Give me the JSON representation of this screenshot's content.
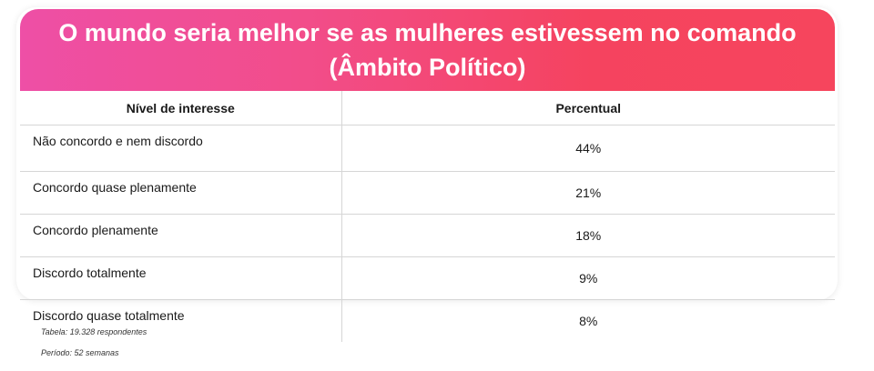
{
  "title": "O mundo seria melhor se as mulheres estivessem no comando (Âmbito Político)",
  "columns": [
    "Nível de interesse",
    "Percentual"
  ],
  "rows": [
    {
      "label": "Não concordo e nem discordo",
      "value": "44%"
    },
    {
      "label": "Concordo quase plenamente",
      "value": "21%"
    },
    {
      "label": "Concordo plenamente",
      "value": "18%"
    },
    {
      "label": "Discordo totalmente",
      "value": "9%"
    },
    {
      "label": "Discordo quase totalmente",
      "value": "8%"
    }
  ],
  "notes": {
    "table": "Tabela: 19.328 respondentes",
    "period": "Período: 52 semanas"
  },
  "colors": {
    "header_gradient_start": "#ee4fa6",
    "header_gradient_end": "#f6455d",
    "title_text": "#ffffff",
    "grid": "#d6d6d6"
  },
  "chart_data": {
    "type": "table",
    "title": "O mundo seria melhor se as mulheres estivessem no comando (Âmbito Político)",
    "columns": [
      "Nível de interesse",
      "Percentual"
    ],
    "categories": [
      "Não concordo e nem discordo",
      "Concordo quase plenamente",
      "Concordo plenamente",
      "Discordo totalmente",
      "Discordo quase totalmente"
    ],
    "values": [
      44,
      21,
      18,
      9,
      8
    ],
    "unit": "%"
  }
}
